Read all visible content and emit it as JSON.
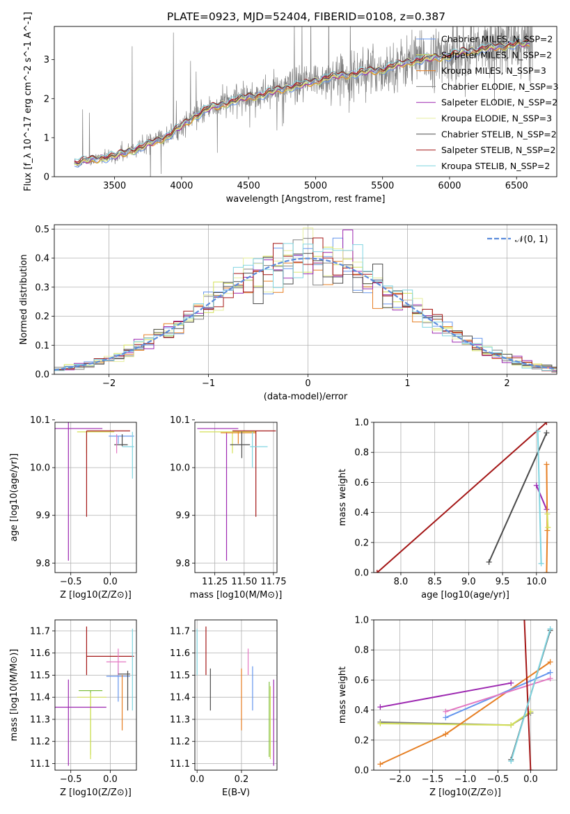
{
  "title": "PLATE=0923, MJD=52404, FIBERID=0108, z=0.387",
  "colors": {
    "chabrier_miles": "#6495ED",
    "salpeter_miles": "#D4E157",
    "kroupa_miles": "#E67E22",
    "chabrier_elodie": "#808080",
    "salpeter_elodie": "#9C27B0",
    "kroupa_elodie": "#E6EE9C",
    "chabrier_stelib": "#4A4A4A",
    "salpeter_stelib": "#A31515",
    "kroupa_stelib": "#7FD4E0",
    "normal": "#5B8BDB",
    "pink": "#E377C2",
    "green": "#7FBF3F"
  },
  "chart_data": [
    {
      "id": "spectrum",
      "type": "line",
      "title": "PLATE=0923, MJD=52404, FIBERID=0108, z=0.387",
      "xlabel": "wavelength [Angstrom, rest frame]",
      "ylabel": "Flux [f_λ 10^-17 erg cm^-2 s^-1 A^-1]",
      "xlim": [
        3050,
        6800
      ],
      "ylim": [
        0,
        3.85
      ],
      "xticks": [
        3500,
        4000,
        4500,
        5000,
        5500,
        6000,
        6500
      ],
      "yticks": [
        0,
        1,
        2,
        3
      ],
      "legend_position": "top-right",
      "continuum": {
        "x": [
          3200,
          3300,
          3400,
          3500,
          3600,
          3700,
          3800,
          3900,
          4000,
          4100,
          4200,
          4300,
          4400,
          4500,
          4600,
          4700,
          4800,
          4900,
          5000,
          5100,
          5200,
          5300,
          5400,
          5500,
          5600,
          5700,
          5800,
          5900,
          6000,
          6100,
          6200,
          6300,
          6400,
          6500,
          6600
        ],
        "y": [
          0.35,
          0.42,
          0.48,
          0.52,
          0.65,
          0.75,
          0.9,
          1.05,
          1.3,
          1.55,
          1.75,
          1.85,
          1.95,
          2.05,
          2.1,
          2.2,
          2.3,
          2.35,
          2.45,
          2.55,
          2.6,
          2.65,
          2.7,
          2.75,
          2.85,
          2.95,
          3.0,
          3.05,
          3.1,
          3.2,
          3.25,
          3.3,
          3.35,
          3.4,
          3.4
        ]
      },
      "series": [
        {
          "name": "Chabrier MILES, N_SSP=2",
          "color_key": "chabrier_miles"
        },
        {
          "name": "Salpeter MILES, N_SSP=2",
          "color_key": "salpeter_miles"
        },
        {
          "name": "Kroupa MILES, N_SSP=3",
          "color_key": "kroupa_miles"
        },
        {
          "name": "Chabrier ELODIE, N_SSP=3",
          "color_key": "chabrier_elodie"
        },
        {
          "name": "Salpeter ELODIE, N_SSP=2",
          "color_key": "salpeter_elodie"
        },
        {
          "name": "Kroupa ELODIE, N_SSP=3",
          "color_key": "kroupa_elodie"
        },
        {
          "name": "Chabrier STELIB, N_SSP=2",
          "color_key": "chabrier_stelib"
        },
        {
          "name": "Salpeter STELIB, N_SSP=2",
          "color_key": "salpeter_stelib"
        },
        {
          "name": "Kroupa STELIB, N_SSP=2",
          "color_key": "kroupa_stelib"
        }
      ]
    },
    {
      "id": "residuals",
      "type": "area",
      "xlabel": "(data-model)/error",
      "ylabel": "Normed distribution",
      "xlim": [
        -2.55,
        2.5
      ],
      "ylim": [
        0,
        0.515
      ],
      "xticks": [
        -2,
        -1,
        0,
        1,
        2
      ],
      "yticks": [
        0.0,
        0.1,
        0.2,
        0.3,
        0.4,
        0.5
      ],
      "grid": true,
      "legend_position": "top-right",
      "normal_label": "𝒩(0, 1)",
      "bin_width": 0.1
    },
    {
      "id": "age_vs_z",
      "type": "scatter",
      "xlabel": "Z [log10(Z/Z⊙)]",
      "ylabel": "age [log10(age/yr)]",
      "xlim": [
        -0.7,
        0.33
      ],
      "ylim": [
        9.78,
        10.095
      ],
      "xticks": [
        -0.5,
        0.0
      ],
      "yticks": [
        9.8,
        9.9,
        10.0,
        10.1
      ],
      "grid": true,
      "errorbars": [
        {
          "color_key": "salpeter_elodie",
          "x": -0.53,
          "y": 10.0,
          "y0": 9.805,
          "y1": 10.14,
          "x0": -0.7,
          "x1": -0.1,
          "yh": 10.082
        },
        {
          "color_key": "salpeter_miles",
          "x": -0.3,
          "y": 10.05,
          "y0": 10.03,
          "y1": 10.075,
          "x0": -0.42,
          "x1": 0.05,
          "yh": 10.075
        },
        {
          "color_key": "salpeter_stelib",
          "x": -0.3,
          "y": 10.0,
          "y0": 9.897,
          "y1": 10.077,
          "x0": -0.3,
          "x1": 0.25,
          "yh": 10.077
        },
        {
          "color_key": "chabrier_miles",
          "x": 0.1,
          "y": 10.06,
          "y0": 10.05,
          "y1": 10.066,
          "x0": -0.02,
          "x1": 0.3,
          "yh": 10.066
        },
        {
          "color_key": "chabrier_stelib",
          "x": 0.15,
          "y": 10.05,
          "y0": 10.045,
          "y1": 10.07,
          "x0": 0.05,
          "x1": 0.22,
          "yh": 10.048
        },
        {
          "color_key": "pink",
          "x": 0.08,
          "y": 10.05,
          "y0": 10.03,
          "y1": 10.07,
          "x0": 0.08,
          "x1": 0.08,
          "yh": 10.05
        },
        {
          "color_key": "kroupa_stelib",
          "x": 0.28,
          "y": 10.04,
          "y0": 9.977,
          "y1": 10.075,
          "x0": 0.15,
          "x1": 0.3,
          "yh": 10.044
        }
      ]
    },
    {
      "id": "age_vs_mass",
      "type": "scatter",
      "xlabel": "mass [log10(M/M⊙)]",
      "xlim": [
        11.08,
        11.78
      ],
      "ylim": [
        9.78,
        10.095
      ],
      "xticks": [
        11.25,
        11.5,
        11.75
      ],
      "yticks": [
        9.8,
        9.9,
        10.0,
        10.1
      ],
      "grid": true,
      "errorbars": [
        {
          "color_key": "salpeter_elodie",
          "x": 11.35,
          "y": 10.0,
          "y0": 9.805,
          "y1": 10.075,
          "x0": 11.1,
          "x1": 11.45,
          "yh": 10.082
        },
        {
          "color_key": "salpeter_miles",
          "x": 11.4,
          "y": 10.05,
          "y0": 10.03,
          "y1": 10.075,
          "x0": 11.12,
          "x1": 11.6,
          "yh": 10.075
        },
        {
          "color_key": "kroupa_miles",
          "x": 11.45,
          "y": 10.07,
          "y0": 10.05,
          "y1": 10.075,
          "x0": 11.3,
          "x1": 11.6,
          "yh": 10.073
        },
        {
          "color_key": "chabrier_stelib",
          "x": 11.48,
          "y": 10.05,
          "y0": 10.02,
          "y1": 10.075,
          "x0": 11.38,
          "x1": 11.55,
          "yh": 10.048
        },
        {
          "color_key": "salpeter_stelib",
          "x": 11.6,
          "y": 10.0,
          "y0": 9.897,
          "y1": 10.077,
          "x0": 11.4,
          "x1": 11.77,
          "yh": 10.077
        },
        {
          "color_key": "kroupa_stelib",
          "x": 11.57,
          "y": 10.04,
          "y0": 10.0,
          "y1": 10.075,
          "x0": 11.55,
          "x1": 11.7,
          "yh": 10.044
        }
      ]
    },
    {
      "id": "weight_vs_age",
      "type": "line",
      "xlabel": "age [log10(age/yr)]",
      "ylabel": "mass weight",
      "xlim": [
        7.6,
        10.3
      ],
      "ylim": [
        0,
        1.0
      ],
      "xticks": [
        8.0,
        8.5,
        9.0,
        9.5,
        10.0
      ],
      "yticks": [
        0.0,
        0.2,
        0.4,
        0.6,
        0.8,
        1.0
      ],
      "grid": true,
      "series": [
        {
          "color_key": "salpeter_stelib",
          "x": [
            7.65,
            10.15
          ],
          "y": [
            0.0,
            1.0
          ]
        },
        {
          "color_key": "chabrier_stelib",
          "x": [
            9.3,
            10.15
          ],
          "y": [
            0.07,
            0.93
          ]
        },
        {
          "color_key": "salpeter_elodie",
          "x": [
            10.0,
            10.15
          ],
          "y": [
            0.58,
            0.42
          ]
        },
        {
          "color_key": "kroupa_stelib",
          "x": [
            10.07,
            10.02
          ],
          "y": [
            0.06,
            0.94
          ]
        },
        {
          "color_key": "kroupa_miles",
          "x": [
            10.15,
            10.16,
            10.15
          ],
          "y": [
            0.0,
            0.28,
            0.72
          ]
        },
        {
          "color_key": "salpeter_miles",
          "x": [
            10.17,
            10.16
          ],
          "y": [
            0.3,
            0.39
          ]
        }
      ]
    },
    {
      "id": "mass_vs_z",
      "type": "scatter",
      "xlabel": "Z [log10(Z/Z⊙)]",
      "ylabel": "mass [log10(M/M⊙)]",
      "xlim": [
        -0.7,
        0.33
      ],
      "ylim": [
        11.07,
        11.75
      ],
      "xticks": [
        -0.5,
        0.0
      ],
      "yticks": [
        11.1,
        11.2,
        11.3,
        11.4,
        11.5,
        11.6,
        11.7
      ],
      "grid": true,
      "errorbars": [
        {
          "color_key": "salpeter_stelib",
          "x": -0.3,
          "y": 11.58,
          "y0": 11.5,
          "y1": 11.72,
          "x0": -0.3,
          "x1": 0.3,
          "yh": 11.585
        },
        {
          "color_key": "chabrier_miles",
          "x": 0.1,
          "y": 11.5,
          "y0": 11.38,
          "y1": 11.55,
          "x0": -0.05,
          "x1": 0.25,
          "yh": 11.495
        },
        {
          "color_key": "pink",
          "x": 0.1,
          "y": 11.56,
          "y0": 11.5,
          "y1": 11.62,
          "x0": -0.05,
          "x1": 0.2,
          "yh": 11.56
        },
        {
          "color_key": "kroupa_miles",
          "x": 0.15,
          "y": 11.4,
          "y0": 11.25,
          "y1": 11.5,
          "x0": 0.15,
          "x1": 0.15,
          "yh": 11.4
        },
        {
          "color_key": "chabrier_stelib",
          "x": 0.22,
          "y": 11.5,
          "y0": 11.34,
          "y1": 11.52,
          "x0": 0.1,
          "x1": 0.25,
          "yh": 11.505
        },
        {
          "color_key": "kroupa_stelib",
          "x": 0.28,
          "y": 11.6,
          "y0": 11.34,
          "y1": 11.71,
          "x0": 0.28,
          "x1": 0.28,
          "yh": 11.6
        },
        {
          "color_key": "green",
          "x": -0.25,
          "y": 11.43,
          "y0": 11.14,
          "y1": 11.43,
          "x0": -0.4,
          "x1": -0.1,
          "yh": 11.43
        },
        {
          "color_key": "salpeter_miles",
          "x": -0.25,
          "y": 11.4,
          "y0": 11.12,
          "y1": 11.42,
          "x0": -0.42,
          "x1": -0.05,
          "yh": 11.4
        },
        {
          "color_key": "salpeter_elodie",
          "x": -0.53,
          "y": 11.36,
          "y0": 11.09,
          "y1": 11.48,
          "x0": -0.7,
          "x1": -0.05,
          "yh": 11.355
        }
      ]
    },
    {
      "id": "mass_vs_ebv",
      "type": "scatter",
      "xlabel": "E(B-V)",
      "xlim": [
        -0.01,
        0.36
      ],
      "ylim": [
        11.07,
        11.75
      ],
      "xticks": [
        0.0,
        0.2
      ],
      "yticks": [
        11.1,
        11.2,
        11.3,
        11.4,
        11.5,
        11.6,
        11.7
      ],
      "grid": true,
      "errorbars": [
        {
          "color_key": "kroupa_stelib",
          "x": 0.0,
          "y0": 11.5,
          "y1": 11.71
        },
        {
          "color_key": "salpeter_stelib",
          "x": 0.04,
          "y0": 11.5,
          "y1": 11.72
        },
        {
          "color_key": "chabrier_stelib",
          "x": 0.06,
          "y0": 11.34,
          "y1": 11.53
        },
        {
          "color_key": "kroupa_miles",
          "x": 0.2,
          "y0": 11.25,
          "y1": 11.53
        },
        {
          "color_key": "pink",
          "x": 0.23,
          "y0": 11.5,
          "y1": 11.62
        },
        {
          "color_key": "chabrier_miles",
          "x": 0.25,
          "y0": 11.34,
          "y1": 11.54
        },
        {
          "color_key": "green",
          "x": 0.325,
          "y0": 11.13,
          "y1": 11.47
        },
        {
          "color_key": "salpeter_miles",
          "x": 0.33,
          "y0": 11.12,
          "y1": 11.45
        },
        {
          "color_key": "salpeter_elodie",
          "x": 0.345,
          "y0": 11.09,
          "y1": 11.48
        }
      ]
    },
    {
      "id": "weight_vs_z",
      "type": "line",
      "xlabel": "Z [log10(Z/Z⊙)]",
      "ylabel": "mass weight",
      "xlim": [
        -2.4,
        0.4
      ],
      "ylim": [
        0,
        1.0
      ],
      "xticks": [
        -2.0,
        -1.5,
        -1.0,
        -0.5,
        0.0
      ],
      "yticks": [
        0.0,
        0.2,
        0.4,
        0.6,
        0.8,
        1.0
      ],
      "grid": true,
      "series": [
        {
          "color_key": "salpeter_elodie",
          "x": [
            -2.3,
            -0.3
          ],
          "y": [
            0.42,
            0.58
          ]
        },
        {
          "color_key": "chabrier_elodie",
          "x": [
            -2.3,
            -0.3,
            0.0
          ],
          "y": [
            0.32,
            0.3,
            0.38
          ]
        },
        {
          "color_key": "salpeter_miles",
          "x": [
            -2.3,
            -0.3,
            0.0
          ],
          "y": [
            0.31,
            0.3,
            0.39
          ]
        },
        {
          "color_key": "kroupa_miles",
          "x": [
            -2.3,
            -1.3,
            0.3
          ],
          "y": [
            0.04,
            0.24,
            0.72
          ]
        },
        {
          "color_key": "chabrier_miles",
          "x": [
            -1.3,
            0.3
          ],
          "y": [
            0.35,
            0.65
          ]
        },
        {
          "color_key": "pink",
          "x": [
            -1.3,
            0.3
          ],
          "y": [
            0.39,
            0.61
          ]
        },
        {
          "color_key": "salpeter_stelib",
          "x": [
            -0.1,
            0.0
          ],
          "y": [
            1.05,
            0.0
          ]
        },
        {
          "color_key": "chabrier_stelib",
          "x": [
            -0.3,
            0.3
          ],
          "y": [
            0.07,
            0.93
          ]
        },
        {
          "color_key": "kroupa_stelib",
          "x": [
            -0.3,
            0.3
          ],
          "y": [
            0.06,
            0.94
          ]
        }
      ]
    }
  ]
}
